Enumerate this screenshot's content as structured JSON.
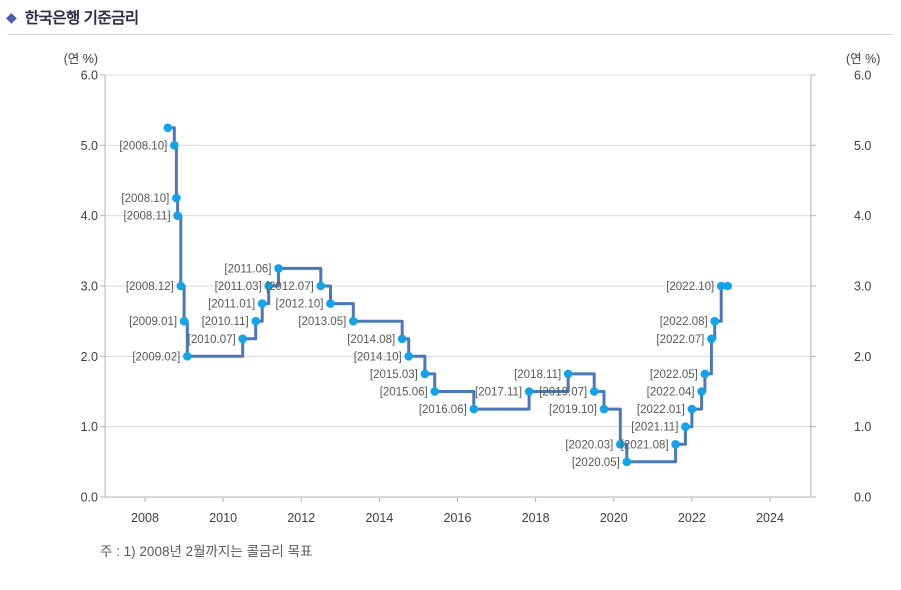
{
  "header": {
    "bullet": "◆",
    "title": "한국은행 기준금리"
  },
  "colors": {
    "line": "#4a78b8",
    "marker": "#12a3e8",
    "gridline": "#d9d9d9",
    "axis": "#b3b3b3",
    "tick_text": "#404040",
    "point_label_text": "#595959",
    "title_text": "#2c2c4a",
    "bullet": "#4a5fae"
  },
  "chart_data": {
    "type": "line",
    "subtype": "step-after",
    "title": "한국은행 기준금리",
    "ylabel_left": "(연 %)",
    "ylabel_right": "(연 %)",
    "ylim": [
      0.0,
      6.0
    ],
    "ytick_interval": 1.0,
    "ytick_format_decimals": 1,
    "xlim": [
      2007,
      2025
    ],
    "xticks": [
      2008,
      2010,
      2012,
      2014,
      2016,
      2018,
      2020,
      2022,
      2024
    ],
    "grid": "horizontal",
    "legend": "none",
    "note": "주 : 1) 2008년 2월까지는 콜금리 목표",
    "series": [
      {
        "name": "한국은행 기준금리",
        "points": [
          {
            "date": "2008.08",
            "value": 5.25,
            "label": ""
          },
          {
            "date": "2008.10",
            "value": 5.0,
            "label": "[2008.10]"
          },
          {
            "date": "2008.10",
            "value": 4.25,
            "label": "[2008.10]"
          },
          {
            "date": "2008.11",
            "value": 4.0,
            "label": "[2008.11]"
          },
          {
            "date": "2008.12",
            "value": 3.0,
            "label": "[2008.12]"
          },
          {
            "date": "2009.01",
            "value": 2.5,
            "label": "[2009.01]"
          },
          {
            "date": "2009.02",
            "value": 2.0,
            "label": "[2009.02]"
          },
          {
            "date": "2010.07",
            "value": 2.25,
            "label": "[2010.07]"
          },
          {
            "date": "2010.11",
            "value": 2.5,
            "label": "[2010.11]"
          },
          {
            "date": "2011.01",
            "value": 2.75,
            "label": "[2011.01]"
          },
          {
            "date": "2011.03",
            "value": 3.0,
            "label": "[2011.03]"
          },
          {
            "date": "2011.06",
            "value": 3.25,
            "label": "[2011.06]"
          },
          {
            "date": "2012.07",
            "value": 3.0,
            "label": "[2012.07]"
          },
          {
            "date": "2012.10",
            "value": 2.75,
            "label": "[2012.10]"
          },
          {
            "date": "2013.05",
            "value": 2.5,
            "label": "[2013.05]"
          },
          {
            "date": "2014.08",
            "value": 2.25,
            "label": "[2014.08]"
          },
          {
            "date": "2014.10",
            "value": 2.0,
            "label": "[2014.10]"
          },
          {
            "date": "2015.03",
            "value": 1.75,
            "label": "[2015.03]"
          },
          {
            "date": "2015.06",
            "value": 1.5,
            "label": "[2015.06]"
          },
          {
            "date": "2016.06",
            "value": 1.25,
            "label": "[2016.06]"
          },
          {
            "date": "2017.11",
            "value": 1.5,
            "label": "[2017.11]"
          },
          {
            "date": "2018.11",
            "value": 1.75,
            "label": "[2018.11]"
          },
          {
            "date": "2019.07",
            "value": 1.5,
            "label": "[2019.07]"
          },
          {
            "date": "2019.10",
            "value": 1.25,
            "label": "[2019.10]"
          },
          {
            "date": "2020.03",
            "value": 0.75,
            "label": "[2020.03]"
          },
          {
            "date": "2020.05",
            "value": 0.5,
            "label": "[2020.05]"
          },
          {
            "date": "2021.08",
            "value": 0.75,
            "label": "[2021.08]"
          },
          {
            "date": "2021.11",
            "value": 1.0,
            "label": "[2021.11]"
          },
          {
            "date": "2022.01",
            "value": 1.25,
            "label": "[2022.01]"
          },
          {
            "date": "2022.04",
            "value": 1.5,
            "label": "[2022.04]"
          },
          {
            "date": "2022.05",
            "value": 1.75,
            "label": "[2022.05]"
          },
          {
            "date": "2022.07",
            "value": 2.25,
            "label": "[2022.07]"
          },
          {
            "date": "2022.08",
            "value": 2.5,
            "label": "[2022.08]"
          },
          {
            "date": "2022.10",
            "value": 3.0,
            "label": "[2022.10]"
          },
          {
            "date": "2022.12",
            "value": 3.0,
            "label": ""
          }
        ]
      }
    ]
  }
}
